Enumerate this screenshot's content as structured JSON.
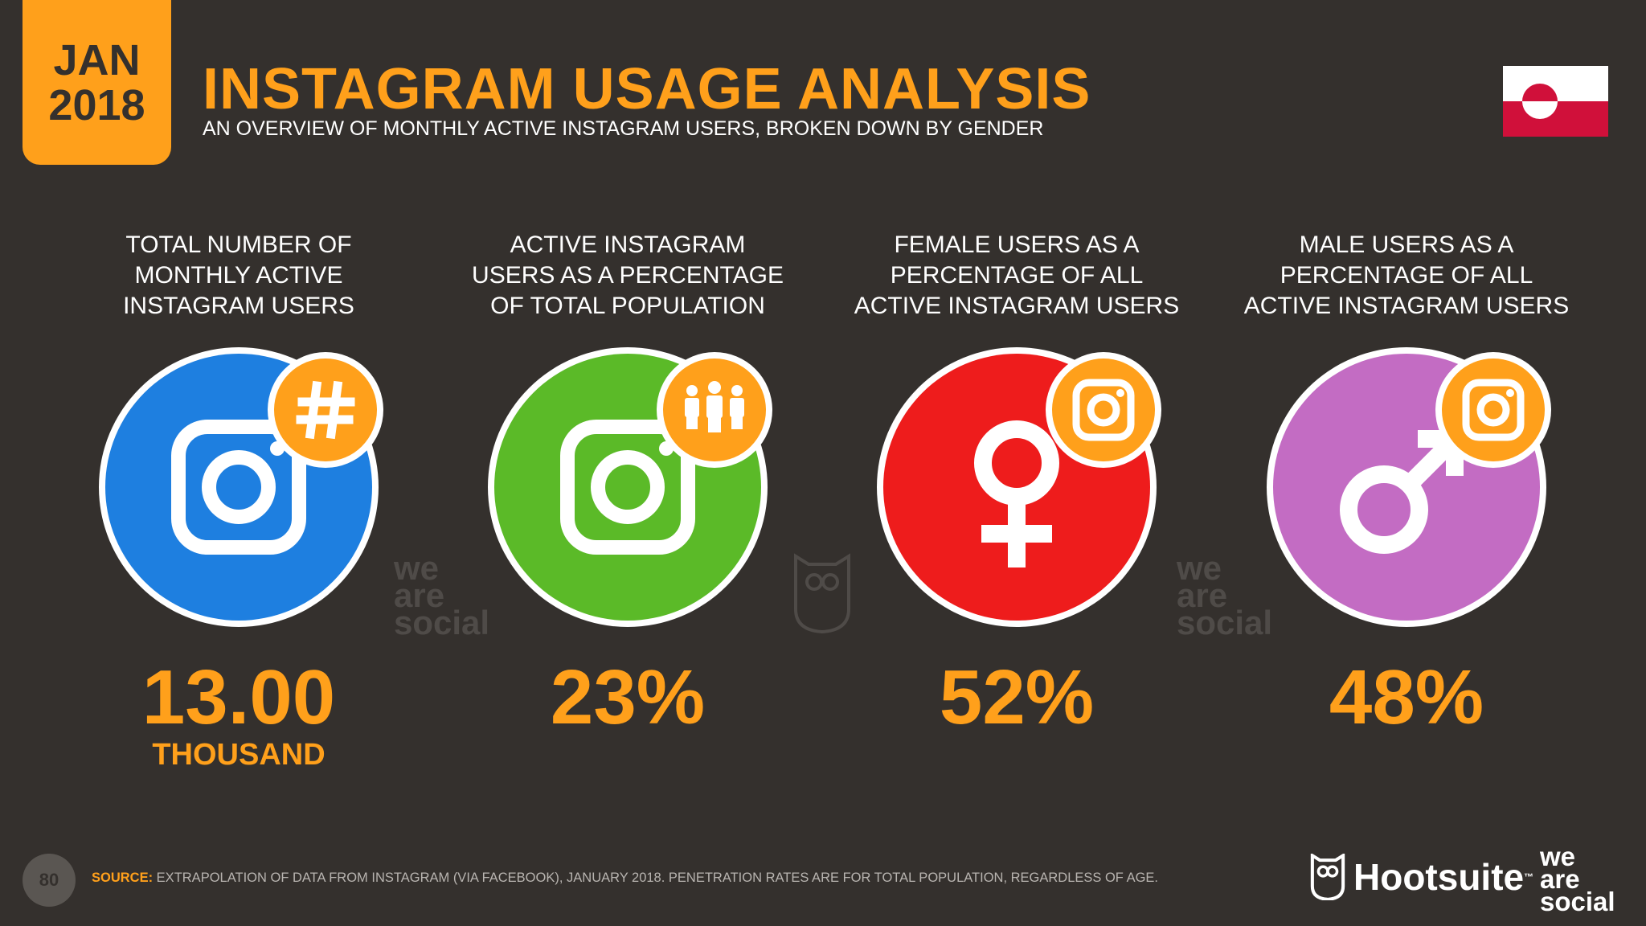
{
  "header": {
    "month": "JAN",
    "year": "2018",
    "title": "INSTAGRAM USAGE ANALYSIS",
    "subtitle": "AN OVERVIEW OF MONTHLY ACTIVE INSTAGRAM USERS, BROKEN DOWN BY GENDER"
  },
  "flag_colors": {
    "white": "#ffffff",
    "red": "#d0103a"
  },
  "colors": {
    "accent": "#ffa01b",
    "background": "#34302d"
  },
  "stats": [
    {
      "label": [
        "TOTAL NUMBER OF",
        "MONTHLY ACTIVE",
        "INSTAGRAM USERS"
      ],
      "value": "13.00",
      "unit": "THOUSAND",
      "color": "#1e7fe0",
      "main_icon": "instagram-icon",
      "badge_icon": "hashtag-icon"
    },
    {
      "label": [
        "ACTIVE INSTAGRAM",
        "USERS AS A PERCENTAGE",
        "OF TOTAL POPULATION"
      ],
      "value": "23%",
      "unit": "",
      "color": "#5bba28",
      "main_icon": "instagram-icon",
      "badge_icon": "people-icon"
    },
    {
      "label": [
        "FEMALE USERS AS A",
        "PERCENTAGE OF ALL",
        "ACTIVE INSTAGRAM USERS"
      ],
      "value": "52%",
      "unit": "",
      "color": "#ee1c1c",
      "main_icon": "female-symbol-icon",
      "badge_icon": "instagram-icon"
    },
    {
      "label": [
        "MALE USERS AS A",
        "PERCENTAGE OF ALL",
        "ACTIVE INSTAGRAM USERS"
      ],
      "value": "48%",
      "unit": "",
      "color": "#c36cc3",
      "main_icon": "male-symbol-icon",
      "badge_icon": "instagram-icon"
    }
  ],
  "watermark": {
    "line1": "we",
    "line2": "are",
    "line3": "social"
  },
  "footer": {
    "page": "80",
    "source_label": "SOURCE:",
    "source_text": " EXTRAPOLATION OF DATA FROM INSTAGRAM (VIA FACEBOOK), JANUARY 2018. PENETRATION RATES ARE FOR TOTAL POPULATION, REGARDLESS OF AGE.",
    "brand1": "Hootsuite",
    "brand1_tm": "™",
    "brand2": [
      "we",
      "are",
      "social"
    ]
  }
}
